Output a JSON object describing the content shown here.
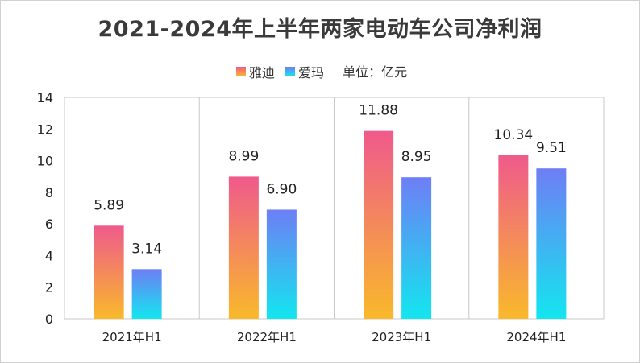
{
  "chart_data": {
    "type": "bar",
    "title": "2021-2024年上半年两家电动车公司净利润",
    "unit_label": "单位：亿元",
    "categories": [
      "2021年H1",
      "2022年H1",
      "2023年H1",
      "2024年H1"
    ],
    "series": [
      {
        "name": "雅迪",
        "values": [
          5.89,
          8.99,
          11.88,
          10.34
        ],
        "value_labels": [
          "5.89",
          "8.99",
          "11.88",
          "10.34"
        ],
        "gradient_top": "#ef5a8c",
        "gradient_bottom": "#f9b92b"
      },
      {
        "name": "爱玛",
        "values": [
          3.14,
          6.9,
          8.95,
          9.51
        ],
        "value_labels": [
          "3.14",
          "6.90",
          "8.95",
          "9.51"
        ],
        "gradient_top": "#6e7ef5",
        "gradient_bottom": "#13e6ef"
      }
    ],
    "ylim": [
      0,
      14
    ],
    "yticks": [
      0,
      2,
      4,
      6,
      8,
      10,
      12,
      14
    ],
    "grid": "vertical category separators",
    "legend_position": "top-center"
  }
}
